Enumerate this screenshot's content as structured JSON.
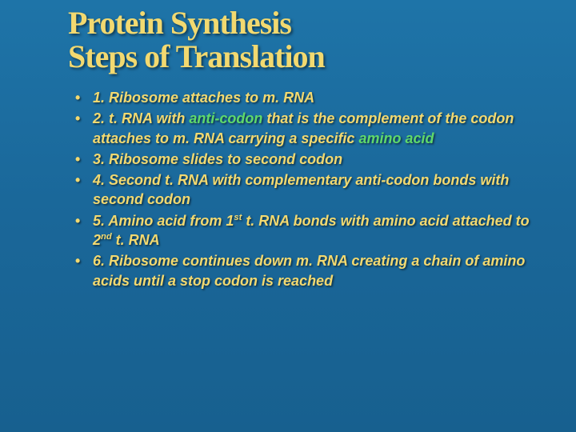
{
  "title": {
    "line1": "Protein Synthesis",
    "line2": "Steps of Translation"
  },
  "bullets": [
    {
      "n": "1.",
      "pre": "Ribosome attaches to m. RNA",
      "hl": "",
      "post": ""
    },
    {
      "n": "2.",
      "pre": "t. RNA with ",
      "hl": "anti-codon",
      "post": " that is the complement of the codon attaches to m. RNA carrying a specific ",
      "hl2": "amino acid"
    },
    {
      "n": "3.",
      "pre": "Ribosome slides to second codon",
      "hl": "",
      "post": ""
    },
    {
      "n": "4.",
      "pre": "Second t. RNA with complementary anti-codon bonds with second codon",
      "hl": "",
      "post": ""
    },
    {
      "n": "5.",
      "pre": "Amino acid from 1",
      "sup1": "st",
      "mid": " t. RNA bonds with amino acid attached to 2",
      "sup2": "nd",
      "post": " t. RNA"
    },
    {
      "n": "6.",
      "pre": "Ribosome continues down m. RNA creating a chain of amino acids until a stop codon is reached",
      "hl": "",
      "post": ""
    }
  ],
  "colors": {
    "background_top": "#1e74a8",
    "background_bottom": "#17608f",
    "text_main": "#f2d970",
    "highlight": "#5fd96a",
    "shadow": "rgba(0,0,0,0.55)"
  },
  "typography": {
    "title_font": "Georgia serif",
    "title_size_pt": 40,
    "title_weight": 900,
    "body_font": "Verdana sans-serif",
    "body_size_pt": 18,
    "body_weight": 700,
    "body_style": "italic"
  }
}
